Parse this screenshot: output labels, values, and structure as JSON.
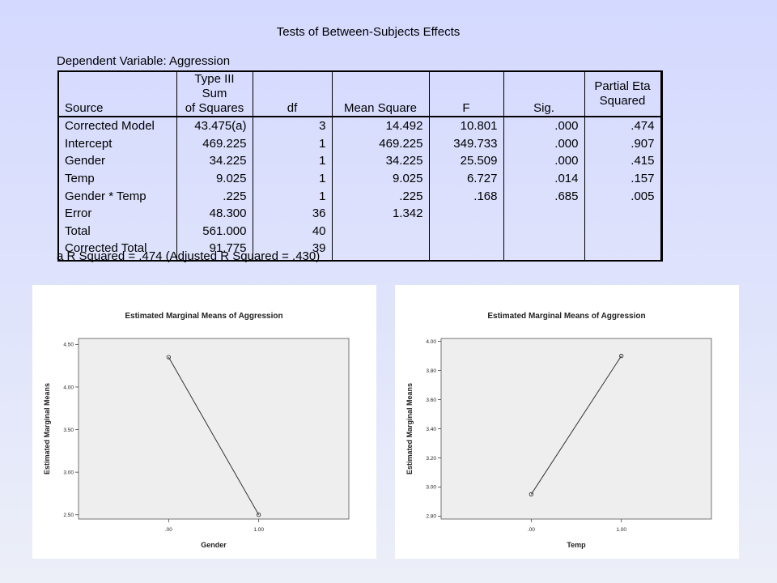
{
  "table": {
    "title": "Tests of Between-Subjects Effects",
    "dependent_variable": "Dependent Variable: Aggression",
    "headers": {
      "source": "Source",
      "ss_line1": "Type III Sum",
      "ss_line2": "of Squares",
      "df": "df",
      "ms": "Mean Square",
      "f": "F",
      "sig": "Sig.",
      "eta_line1": "Partial Eta",
      "eta_line2": "Squared"
    },
    "rows": [
      {
        "source": "Corrected Model",
        "ss": "43.475(a)",
        "df": "3",
        "ms": "14.492",
        "f": "10.801",
        "sig": ".000",
        "eta": ".474"
      },
      {
        "source": "Intercept",
        "ss": "469.225",
        "df": "1",
        "ms": "469.225",
        "f": "349.733",
        "sig": ".000",
        "eta": ".907"
      },
      {
        "source": "Gender",
        "ss": "34.225",
        "df": "1",
        "ms": "34.225",
        "f": "25.509",
        "sig": ".000",
        "eta": ".415"
      },
      {
        "source": "Temp",
        "ss": "9.025",
        "df": "1",
        "ms": "9.025",
        "f": "6.727",
        "sig": ".014",
        "eta": ".157"
      },
      {
        "source": "Gender * Temp",
        "ss": ".225",
        "df": "1",
        "ms": ".225",
        "f": ".168",
        "sig": ".685",
        "eta": ".005"
      },
      {
        "source": "Error",
        "ss": "48.300",
        "df": "36",
        "ms": "1.342",
        "f": "",
        "sig": "",
        "eta": ""
      },
      {
        "source": "Total",
        "ss": "561.000",
        "df": "40",
        "ms": "",
        "f": "",
        "sig": "",
        "eta": ""
      },
      {
        "source": "Corrected Total",
        "ss": "91.775",
        "df": "39",
        "ms": "",
        "f": "",
        "sig": "",
        "eta": ""
      }
    ],
    "footnote": "a  R Squared = .474 (Adjusted R Squared = .430)"
  },
  "colors": {
    "plot_bg": "#eeeeee",
    "line": "#333333"
  },
  "chart_data": [
    {
      "type": "line",
      "title": "Estimated Marginal Means of Aggression",
      "xlabel": "Gender",
      "ylabel": "Estimated Marginal Means",
      "categories": [
        ".00",
        "1.00"
      ],
      "x": [
        0,
        1
      ],
      "values": [
        4.35,
        2.5
      ],
      "xlim": [
        -1,
        2
      ],
      "ylim": [
        2.45,
        4.57
      ],
      "yticks": [
        2.5,
        3.0,
        3.5,
        4.0,
        4.5
      ],
      "ytick_labels": [
        "2.50",
        "3.00",
        "3.50",
        "4.00",
        "4.50"
      ],
      "grid": false,
      "legend": "none"
    },
    {
      "type": "line",
      "title": "Estimated Marginal Means of Aggression",
      "xlabel": "Temp",
      "ylabel": "Estimated Marginal Means",
      "categories": [
        ".00",
        "1.00"
      ],
      "x": [
        0,
        1
      ],
      "values": [
        2.95,
        3.9
      ],
      "xlim": [
        -1,
        2
      ],
      "ylim": [
        2.78,
        4.02
      ],
      "yticks": [
        2.8,
        3.0,
        3.2,
        3.4,
        3.6,
        3.8,
        4.0
      ],
      "ytick_labels": [
        "2.80",
        "3.00",
        "3.20",
        "3.40",
        "3.60",
        "3.80",
        "4.00"
      ],
      "grid": false,
      "legend": "none"
    }
  ]
}
